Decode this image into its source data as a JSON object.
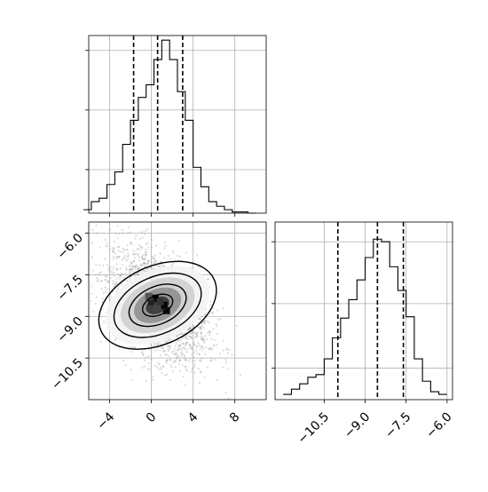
{
  "chart_data": [
    {
      "type": "bar",
      "panel": "histogram-param1",
      "x": [
        -6.125,
        -5.375,
        -4.625,
        -3.875,
        -3.125,
        -2.375,
        -1.625,
        -0.875,
        -0.125,
        0.625,
        1.375,
        2.125,
        2.875,
        3.625,
        4.375,
        5.125,
        5.875,
        6.625,
        7.375,
        8.125,
        8.875,
        9.625
      ],
      "values": [
        0.3,
        1.0,
        1.3,
        2.5,
        3.6,
        6.0,
        8.1,
        10.1,
        11.2,
        13.4,
        15.1,
        13.4,
        10.6,
        8.1,
        4.0,
        2.3,
        1.0,
        0.6,
        0.3,
        0.1,
        0.1,
        0.0
      ],
      "bin_edges": [
        -6.5,
        9.9
      ],
      "quantile_lines": [
        -1.7,
        0.6,
        3.0
      ],
      "xlim": [
        -6.0,
        11.0
      ],
      "ylim": [
        0,
        15.5
      ],
      "grid": true,
      "xlabel": "",
      "ylabel": "",
      "title": ""
    },
    {
      "type": "heatmap",
      "panel": "joint-2d",
      "xlim": [
        -6.0,
        11.0
      ],
      "ylim": [
        -12.0,
        -5.6
      ],
      "x_ticks": [
        "−4",
        "0",
        "4",
        "8"
      ],
      "x_tick_values": [
        -4,
        0,
        4,
        8
      ],
      "y_ticks": [
        "−6.0",
        "−7.5",
        "−9.0",
        "−10.5"
      ],
      "y_tick_values": [
        -6.0,
        -7.5,
        -9.0,
        -10.5
      ],
      "center": [
        0.6,
        -8.6
      ],
      "correlation": -0.45,
      "grid": true,
      "xlabel": "",
      "ylabel": ""
    },
    {
      "type": "bar",
      "panel": "histogram-param2",
      "x": [
        -11.85,
        -11.55,
        -11.25,
        -10.95,
        -10.65,
        -10.35,
        -10.05,
        -9.75,
        -9.45,
        -9.15,
        -8.85,
        -8.55,
        -8.25,
        -7.95,
        -7.65,
        -7.35,
        -7.05,
        -6.75,
        -6.45,
        -6.15
      ],
      "values": [
        0.4,
        0.8,
        1.2,
        1.7,
        1.9,
        3.1,
        4.7,
        6.2,
        7.6,
        9.1,
        10.8,
        12.2,
        12.0,
        10.1,
        8.3,
        6.3,
        3.1,
        1.4,
        0.6,
        0.4
      ],
      "quantile_lines": [
        -10.0,
        -8.55,
        -7.6
      ],
      "xlim": [
        -12.3,
        -5.8
      ],
      "ylim": [
        0,
        13.5
      ],
      "x_ticks": [
        "−10.5",
        "−9.0",
        "−7.5",
        "−6.0"
      ],
      "x_tick_values": [
        -10.5,
        -9.0,
        -7.5,
        -6.0
      ],
      "grid": true,
      "xlabel": "",
      "ylabel": "",
      "title": ""
    }
  ]
}
